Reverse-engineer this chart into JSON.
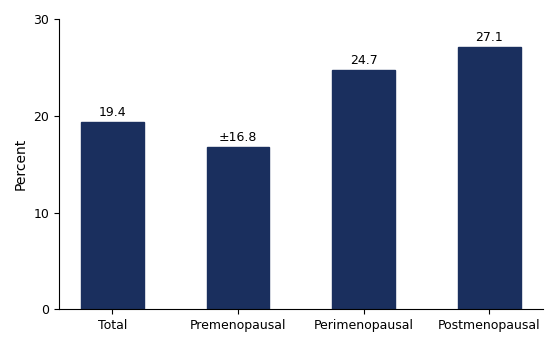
{
  "categories": [
    "Total",
    "Premenopausal",
    "Perimenopausal",
    "Postmenopausal"
  ],
  "values": [
    19.4,
    16.8,
    24.7,
    27.1
  ],
  "labels": [
    "19.4",
    "±16.8",
    "24.7",
    "27.1"
  ],
  "bar_color": "#1a2f5e",
  "ylabel": "Percent",
  "ylim": [
    0,
    30
  ],
  "yticks": [
    0,
    10,
    20,
    30
  ],
  "bar_width": 0.5,
  "background_color": "#ffffff",
  "label_fontsize": 9,
  "tick_fontsize": 9,
  "ylabel_fontsize": 10
}
